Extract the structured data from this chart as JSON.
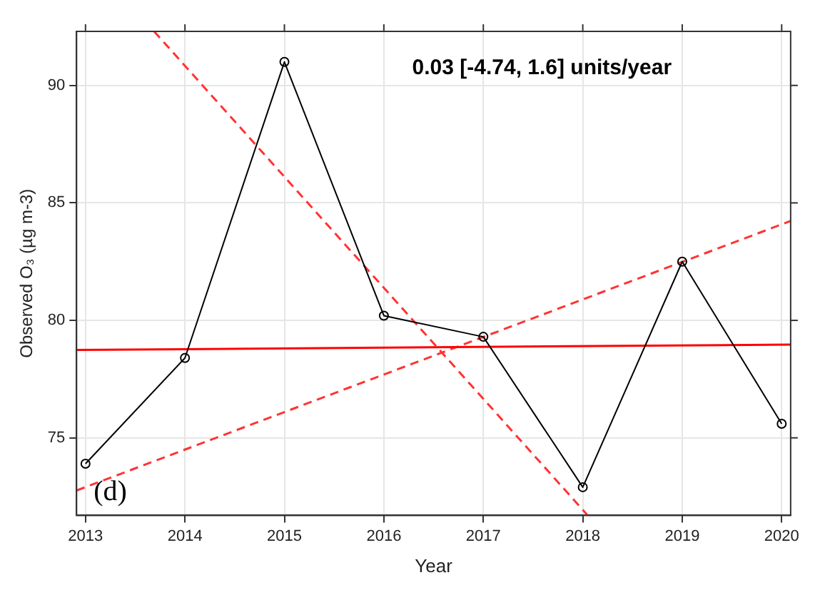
{
  "chart_data": {
    "type": "line",
    "xlabel": "Year",
    "ylabel": "Observed O₃ (µg m-3)",
    "x": [
      2013,
      2014,
      2015,
      2016,
      2017,
      2018,
      2019,
      2020
    ],
    "series": [
      {
        "color": "#000000",
        "marker": "circle",
        "line_style": "solid",
        "values": [
          73.9,
          78.4,
          91.0,
          80.2,
          79.3,
          72.9,
          82.5,
          75.6
        ]
      },
      {
        "color": "#ff0000",
        "marker": "none",
        "line_style": "solid",
        "x": [
          2012.91,
          2020.09
        ],
        "values": [
          78.74,
          78.97
        ]
      },
      {
        "color": "#ff3333",
        "marker": "none",
        "line_style": "dashed",
        "x": [
          2012.91,
          2020.09
        ],
        "values": [
          72.76,
          84.23
        ]
      },
      {
        "color": "#ff3333",
        "marker": "none",
        "line_style": "dashed",
        "x": [
          2013.69,
          2018.05
        ],
        "values": [
          92.3,
          71.7
        ]
      }
    ],
    "xlim": [
      2012.91,
      2020.09
    ],
    "ylim": [
      71.7,
      92.3
    ],
    "xticks": [
      2013,
      2014,
      2015,
      2016,
      2017,
      2018,
      2019,
      2020
    ],
    "yticks": [
      75,
      80,
      85,
      90
    ],
    "grid": true,
    "legend": false,
    "annotations": [
      "0.03 [-4.74, 1.6] units/year",
      "(d)"
    ]
  }
}
